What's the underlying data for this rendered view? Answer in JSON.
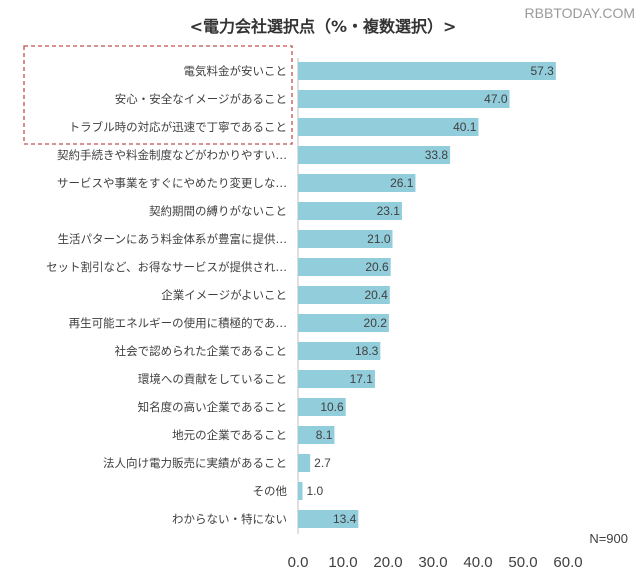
{
  "watermark": "RBBTODAY.COM",
  "note": "N=900",
  "colors": {
    "bar": "#92cddc",
    "highlight_border": "#c0504d",
    "axis": "#bfbfbf"
  },
  "chart_data": {
    "type": "bar",
    "orientation": "horizontal",
    "title": "<電力会社選択点（%・複数選択）>",
    "categories": [
      "電気料金が安いこと",
      "安心・安全なイメージがあること",
      "トラブル時の対応が迅速で丁寧であること",
      "契約手続きや料金制度などがわかりやすい…",
      "サービスや事業をすぐにやめたり変更しな…",
      "契約期間の縛りがないこと",
      "生活パターンにあう料金体系が豊富に提供…",
      "セット割引など、お得なサービスが提供され…",
      "企業イメージがよいこと",
      "再生可能エネルギーの使用に積極的であ…",
      "社会で認められた企業であること",
      "環境への貢献をしていること",
      "知名度の高い企業であること",
      "地元の企業であること",
      "法人向け電力販売に実績があること",
      "その他",
      "わからない・特にない"
    ],
    "values": [
      57.3,
      47.0,
      40.1,
      33.8,
      26.1,
      23.1,
      21.0,
      20.6,
      20.4,
      20.2,
      18.3,
      17.1,
      10.6,
      8.1,
      2.7,
      1.0,
      13.4
    ],
    "value_labels": [
      "57.3",
      "47.0",
      "40.1",
      "33.8",
      "26.1",
      "23.1",
      "21.0",
      "20.6",
      "20.4",
      "20.2",
      "18.3",
      "17.1",
      "10.6",
      "8.1",
      "2.7",
      "1.0",
      "13.4"
    ],
    "xlim": [
      0,
      60
    ],
    "xticks": [
      "0.0",
      "10.0",
      "20.0",
      "30.0",
      "40.0",
      "50.0",
      "60.0"
    ],
    "highlighted_categories": 3,
    "grid": false
  }
}
